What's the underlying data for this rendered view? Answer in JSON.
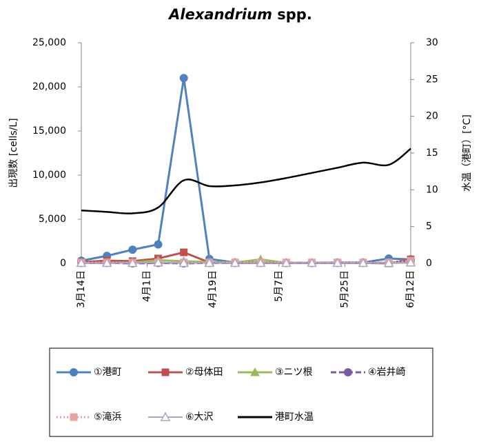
{
  "chart_data": {
    "type": "line",
    "title": [
      "Alexandrium",
      "spp."
    ],
    "y_label": "出現数 [cells/L]",
    "y2_label": "水温（港町）[°C]",
    "x": [
      "03-14",
      "03-21",
      "03-28",
      "04-04",
      "04-11",
      "04-18",
      "04-25",
      "05-02",
      "05-09",
      "05-16",
      "05-23",
      "05-30",
      "06-06",
      "06-12"
    ],
    "xlim": [
      "03-14",
      "06-12"
    ],
    "xticks": [
      {
        "value": "03-14",
        "label": "3月14日"
      },
      {
        "value": "04-01",
        "label": "4月1日"
      },
      {
        "value": "04-19",
        "label": "4月19日"
      },
      {
        "value": "05-07",
        "label": "5月7日"
      },
      {
        "value": "05-25",
        "label": "5月25日"
      },
      {
        "value": "06-12",
        "label": "6月12日"
      }
    ],
    "ylim": [
      0,
      25000
    ],
    "yticks": [
      0,
      {
        "value": 5000,
        "label": "5,000"
      },
      {
        "value": 10000,
        "label": "10,000"
      },
      {
        "value": 15000,
        "label": "15,000"
      },
      {
        "value": 20000,
        "label": "20,000"
      },
      {
        "value": 25000,
        "label": "25,000"
      }
    ],
    "y2lim": [
      0,
      30
    ],
    "y2ticks": [
      0,
      5,
      10,
      15,
      20,
      25,
      30
    ],
    "grid": false,
    "legend": "bottom",
    "series": [
      {
        "name": "①港町",
        "color": "#4f81bd",
        "marker": "circle",
        "dash": "solid",
        "values": [
          300,
          850,
          1550,
          2150,
          21000,
          500,
          100,
          100,
          50,
          50,
          100,
          100,
          550,
          450
        ]
      },
      {
        "name": "②母体田",
        "color": "#c0504d",
        "marker": "square",
        "dash": "solid",
        "values": [
          150,
          300,
          250,
          550,
          1250,
          100,
          50,
          50,
          50,
          50,
          50,
          50,
          0,
          450
        ]
      },
      {
        "name": "③ニツ根",
        "color": "#9bbb59",
        "marker": "triangle",
        "dash": "solid",
        "values": [
          50,
          50,
          100,
          350,
          250,
          150,
          100,
          450,
          50,
          50,
          50,
          50,
          50,
          100
        ]
      },
      {
        "name": "④岩井崎",
        "color": "#7a5a9e",
        "marker": "circle",
        "dash": "dashed",
        "values": [
          50,
          50,
          0,
          50,
          0,
          50,
          50,
          50,
          50,
          50,
          50,
          50,
          50,
          250
        ]
      },
      {
        "name": "⑤滝浜",
        "color": "#e6a3a0",
        "marker": "square",
        "dash": "dotted",
        "values": [
          100,
          100,
          100,
          100,
          100,
          100,
          100,
          100,
          100,
          100,
          100,
          100,
          100,
          300
        ]
      },
      {
        "name": "⑥大沢",
        "color": "#b3a2c7",
        "marker": "triangle-open",
        "dash": "double",
        "values": [
          50,
          50,
          50,
          100,
          50,
          50,
          50,
          50,
          50,
          50,
          50,
          50,
          50,
          100
        ]
      },
      {
        "name": "港町水温",
        "color": "#000000",
        "marker": null,
        "dash": "smooth",
        "axis": "y2",
        "values": [
          7.2,
          7.0,
          6.8,
          7.6,
          11.3,
          10.5,
          10.6,
          11.0,
          11.6,
          12.3,
          13.0,
          13.7,
          13.4,
          15.6
        ]
      }
    ]
  }
}
